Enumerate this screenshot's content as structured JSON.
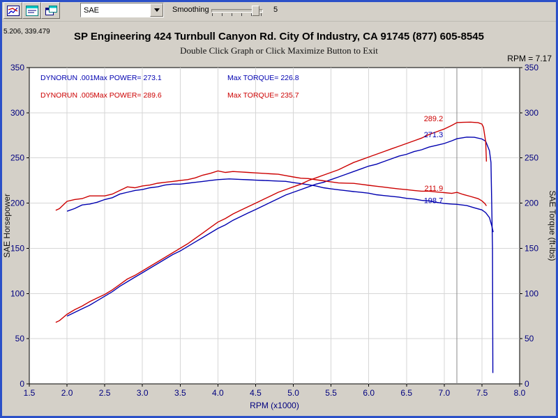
{
  "toolbar": {
    "dropdown_value": "SAE",
    "smoothing_label": "Smoothing",
    "smoothing_value": "5"
  },
  "readout": {
    "coords": "5.206, 339.479",
    "rpm_label": "RPM = 7.17"
  },
  "header": {
    "title": "SP Engineering 424 Turnbull Canyon Rd. City Of Industry, CA 91745 (877) 605-8545",
    "subtitle": "Double Click Graph or Click Maximize Button to Exit"
  },
  "legend": {
    "rows": [
      {
        "run": "DYNORUN .001",
        "power": "Max POWER= 273.1",
        "torque": "Max TORQUE= 226.8",
        "color": "#0000b0"
      },
      {
        "run": "DYNORUN .005",
        "power": "Max POWER= 289.6",
        "torque": "Max TORQUE= 235.7",
        "color": "#cc0000"
      }
    ]
  },
  "chart_data": {
    "type": "line",
    "xlabel": "RPM (x1000)",
    "ylabel": "SAE Horsepower",
    "y2label": "SAE Torque (ft-lbs)",
    "xlim": [
      1.5,
      8.0
    ],
    "ylim": [
      0,
      350
    ],
    "x_ticks": [
      1.5,
      2.0,
      2.5,
      3.0,
      3.5,
      4.0,
      4.5,
      5.0,
      5.5,
      6.0,
      6.5,
      7.0,
      7.5,
      8.0
    ],
    "y_ticks": [
      0,
      50,
      100,
      150,
      200,
      250,
      300,
      350
    ],
    "grid": true,
    "legend_position": "top-left",
    "cursor": {
      "rpm": 7.17,
      "values": [
        {
          "text": "289.2",
          "value": 289.2,
          "color": "#cc0000"
        },
        {
          "text": "271.3",
          "value": 271.3,
          "color": "#0000b0"
        },
        {
          "text": "211.9",
          "value": 211.9,
          "color": "#cc0000"
        },
        {
          "text": "198.7",
          "value": 198.7,
          "color": "#0000b0"
        }
      ]
    },
    "runs": [
      {
        "name": "DYNORUN .001",
        "max_power": 273.1,
        "max_torque": 226.8
      },
      {
        "name": "DYNORUN .005",
        "max_power": 289.6,
        "max_torque": 235.7
      }
    ],
    "series": [
      {
        "id": "run001-power",
        "name": "DYNORUN .001 Power",
        "color": "#0000b0",
        "axis": "hp",
        "points": [
          [
            2.0,
            75
          ],
          [
            2.1,
            79
          ],
          [
            2.2,
            83
          ],
          [
            2.3,
            87
          ],
          [
            2.4,
            92
          ],
          [
            2.5,
            97
          ],
          [
            2.6,
            102
          ],
          [
            2.7,
            108
          ],
          [
            2.8,
            113
          ],
          [
            2.9,
            118
          ],
          [
            3.0,
            123
          ],
          [
            3.1,
            128
          ],
          [
            3.2,
            133
          ],
          [
            3.3,
            138
          ],
          [
            3.4,
            143
          ],
          [
            3.5,
            147
          ],
          [
            3.6,
            152
          ],
          [
            3.7,
            157
          ],
          [
            3.8,
            162
          ],
          [
            3.9,
            167
          ],
          [
            4.0,
            172
          ],
          [
            4.1,
            176
          ],
          [
            4.2,
            181
          ],
          [
            4.3,
            185
          ],
          [
            4.4,
            189
          ],
          [
            4.5,
            193
          ],
          [
            4.6,
            197
          ],
          [
            4.7,
            201
          ],
          [
            4.8,
            205
          ],
          [
            4.9,
            209
          ],
          [
            5.0,
            212
          ],
          [
            5.1,
            215
          ],
          [
            5.2,
            218
          ],
          [
            5.3,
            221
          ],
          [
            5.4,
            223
          ],
          [
            5.5,
            226
          ],
          [
            5.6,
            229
          ],
          [
            5.7,
            232
          ],
          [
            5.8,
            235
          ],
          [
            5.9,
            238
          ],
          [
            6.0,
            241
          ],
          [
            6.1,
            243
          ],
          [
            6.2,
            246
          ],
          [
            6.3,
            249
          ],
          [
            6.4,
            252
          ],
          [
            6.5,
            254
          ],
          [
            6.6,
            257
          ],
          [
            6.7,
            259
          ],
          [
            6.8,
            262
          ],
          [
            6.9,
            264
          ],
          [
            7.0,
            266
          ],
          [
            7.1,
            269
          ],
          [
            7.17,
            271.3
          ],
          [
            7.3,
            273.1
          ],
          [
            7.4,
            272.8
          ],
          [
            7.5,
            271.0
          ],
          [
            7.55,
            268.5
          ],
          [
            7.6,
            258
          ],
          [
            7.62,
            245
          ],
          [
            7.64,
            150
          ],
          [
            7.645,
            12
          ]
        ]
      },
      {
        "id": "run001-torque",
        "name": "DYNORUN .001 Torque",
        "color": "#0000b0",
        "axis": "torque",
        "points": [
          [
            2.0,
            191
          ],
          [
            2.1,
            194
          ],
          [
            2.2,
            198
          ],
          [
            2.3,
            199
          ],
          [
            2.4,
            201
          ],
          [
            2.5,
            204
          ],
          [
            2.6,
            206
          ],
          [
            2.7,
            210
          ],
          [
            2.8,
            212
          ],
          [
            2.9,
            214
          ],
          [
            3.0,
            215
          ],
          [
            3.1,
            217
          ],
          [
            3.2,
            218
          ],
          [
            3.3,
            220
          ],
          [
            3.4,
            221
          ],
          [
            3.5,
            221
          ],
          [
            3.6,
            222
          ],
          [
            3.7,
            223
          ],
          [
            3.8,
            224
          ],
          [
            3.9,
            225
          ],
          [
            4.0,
            226
          ],
          [
            4.15,
            226.8
          ],
          [
            4.3,
            226.2
          ],
          [
            4.4,
            225.9
          ],
          [
            4.5,
            225.4
          ],
          [
            4.6,
            225.1
          ],
          [
            4.7,
            224.8
          ],
          [
            4.8,
            224.4
          ],
          [
            4.9,
            224.1
          ],
          [
            5.0,
            222.7
          ],
          [
            5.1,
            221.6
          ],
          [
            5.2,
            220.3
          ],
          [
            5.3,
            219.0
          ],
          [
            5.4,
            217.0
          ],
          [
            5.5,
            215.8
          ],
          [
            5.6,
            214.8
          ],
          [
            5.7,
            213.8
          ],
          [
            5.8,
            212.8
          ],
          [
            5.9,
            211.9
          ],
          [
            6.0,
            211.0
          ],
          [
            6.1,
            209.3
          ],
          [
            6.2,
            208.4
          ],
          [
            6.3,
            207.5
          ],
          [
            6.4,
            206.7
          ],
          [
            6.5,
            205.3
          ],
          [
            6.6,
            204.5
          ],
          [
            6.7,
            203.1
          ],
          [
            6.8,
            202.4
          ],
          [
            6.9,
            200.9
          ],
          [
            7.0,
            199.6
          ],
          [
            7.1,
            199.0
          ],
          [
            7.17,
            198.7
          ],
          [
            7.3,
            197.3
          ],
          [
            7.4,
            194.8
          ],
          [
            7.5,
            192.5
          ],
          [
            7.55,
            189.5
          ],
          [
            7.6,
            184
          ],
          [
            7.63,
            175
          ],
          [
            7.65,
            168
          ]
        ]
      },
      {
        "id": "run005-power",
        "name": "DYNORUN .005 Power",
        "color": "#cc0000",
        "axis": "hp",
        "points": [
          [
            1.85,
            68
          ],
          [
            1.9,
            70
          ],
          [
            2.0,
            77
          ],
          [
            2.1,
            82
          ],
          [
            2.2,
            86
          ],
          [
            2.3,
            91
          ],
          [
            2.4,
            95
          ],
          [
            2.5,
            99
          ],
          [
            2.6,
            104
          ],
          [
            2.7,
            110
          ],
          [
            2.8,
            116
          ],
          [
            2.9,
            120
          ],
          [
            3.0,
            125
          ],
          [
            3.1,
            130
          ],
          [
            3.2,
            135
          ],
          [
            3.3,
            140
          ],
          [
            3.4,
            145
          ],
          [
            3.5,
            150
          ],
          [
            3.6,
            155
          ],
          [
            3.7,
            161
          ],
          [
            3.8,
            167
          ],
          [
            3.9,
            173
          ],
          [
            4.0,
            179
          ],
          [
            4.1,
            183
          ],
          [
            4.2,
            188
          ],
          [
            4.3,
            192
          ],
          [
            4.4,
            196
          ],
          [
            4.5,
            200
          ],
          [
            4.6,
            204
          ],
          [
            4.7,
            208
          ],
          [
            4.8,
            212
          ],
          [
            4.9,
            215
          ],
          [
            5.0,
            218
          ],
          [
            5.1,
            221
          ],
          [
            5.2,
            225
          ],
          [
            5.3,
            228
          ],
          [
            5.4,
            231
          ],
          [
            5.5,
            234
          ],
          [
            5.6,
            237
          ],
          [
            5.7,
            241
          ],
          [
            5.8,
            245
          ],
          [
            5.9,
            248
          ],
          [
            6.0,
            251
          ],
          [
            6.1,
            254
          ],
          [
            6.2,
            257
          ],
          [
            6.3,
            260
          ],
          [
            6.4,
            263
          ],
          [
            6.5,
            266
          ],
          [
            6.6,
            269
          ],
          [
            6.7,
            272
          ],
          [
            6.8,
            276
          ],
          [
            6.9,
            279
          ],
          [
            7.0,
            282
          ],
          [
            7.1,
            286
          ],
          [
            7.17,
            289.2
          ],
          [
            7.25,
            289.4
          ],
          [
            7.35,
            289.6
          ],
          [
            7.45,
            289.0
          ],
          [
            7.5,
            287.5
          ],
          [
            7.52,
            284
          ],
          [
            7.55,
            268
          ],
          [
            7.56,
            246
          ]
        ]
      },
      {
        "id": "run005-torque",
        "name": "DYNORUN .005 Torque",
        "color": "#cc0000",
        "axis": "torque",
        "points": [
          [
            1.85,
            192
          ],
          [
            1.9,
            194
          ],
          [
            2.0,
            202
          ],
          [
            2.1,
            204
          ],
          [
            2.2,
            205
          ],
          [
            2.3,
            208
          ],
          [
            2.4,
            208
          ],
          [
            2.5,
            208
          ],
          [
            2.6,
            210
          ],
          [
            2.7,
            214
          ],
          [
            2.8,
            218
          ],
          [
            2.9,
            217
          ],
          [
            3.0,
            219
          ],
          [
            3.1,
            220
          ],
          [
            3.2,
            222
          ],
          [
            3.3,
            223
          ],
          [
            3.4,
            224
          ],
          [
            3.5,
            225
          ],
          [
            3.6,
            226
          ],
          [
            3.7,
            228
          ],
          [
            3.8,
            231
          ],
          [
            3.9,
            233
          ],
          [
            4.0,
            235.7
          ],
          [
            4.1,
            234
          ],
          [
            4.2,
            235
          ],
          [
            4.3,
            234.5
          ],
          [
            4.4,
            234
          ],
          [
            4.5,
            233.4
          ],
          [
            4.6,
            233
          ],
          [
            4.7,
            232.4
          ],
          [
            4.8,
            232
          ],
          [
            4.9,
            230.4
          ],
          [
            5.0,
            229
          ],
          [
            5.1,
            227.6
          ],
          [
            5.2,
            227.2
          ],
          [
            5.3,
            225.9
          ],
          [
            5.4,
            224.7
          ],
          [
            5.5,
            223.5
          ],
          [
            5.6,
            222.3
          ],
          [
            5.7,
            222.1
          ],
          [
            5.8,
            221.9
          ],
          [
            5.9,
            220.8
          ],
          [
            6.0,
            219.7
          ],
          [
            6.1,
            218.7
          ],
          [
            6.2,
            217.7
          ],
          [
            6.3,
            216.7
          ],
          [
            6.4,
            215.7
          ],
          [
            6.5,
            214.9
          ],
          [
            6.6,
            214.0
          ],
          [
            6.7,
            213.2
          ],
          [
            6.8,
            213.2
          ],
          [
            6.9,
            212.3
          ],
          [
            7.0,
            211.6
          ],
          [
            7.1,
            210.8
          ],
          [
            7.17,
            211.9
          ],
          [
            7.25,
            209.6
          ],
          [
            7.35,
            207.4
          ],
          [
            7.45,
            204.9
          ],
          [
            7.5,
            202.5
          ],
          [
            7.54,
            199.5
          ],
          [
            7.56,
            197
          ]
        ]
      }
    ]
  }
}
